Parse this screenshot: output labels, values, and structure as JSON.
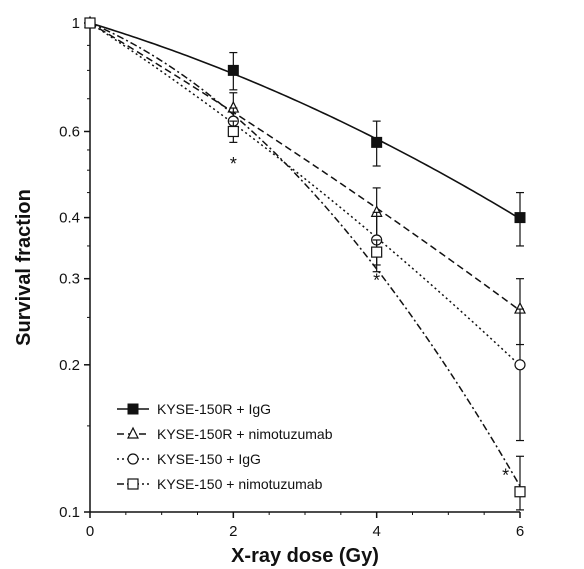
{
  "chart_data": {
    "type": "line",
    "title": "",
    "xlabel": "X-ray dose (Gy)",
    "ylabel": "Survival fraction",
    "scale_y": "log",
    "xlim": [
      0,
      6
    ],
    "ylim": [
      0.1,
      1
    ],
    "x_ticks": [
      0,
      2,
      4,
      6
    ],
    "x_tick_labels": [
      "0",
      "2",
      "4",
      "6"
    ],
    "y_ticks": [
      1,
      0.6,
      0.4,
      0.3,
      0.2,
      0.1
    ],
    "y_tick_labels": [
      "1",
      "0.6",
      "0.4",
      "0.3",
      "0.2",
      "0.1"
    ],
    "grid": false,
    "legend_position": "bottom-left",
    "series": [
      {
        "name": "KYSE-150R + IgG",
        "marker": "filled-square",
        "line": "solid",
        "color": "#111111",
        "x": [
          0,
          2,
          4,
          6
        ],
        "y": [
          1.0,
          0.8,
          0.57,
          0.4
        ],
        "err": [
          0,
          0.07,
          0.06,
          0.05
        ]
      },
      {
        "name": "KYSE-150R + nimotuzumab",
        "marker": "open-triangle",
        "line": "dashed",
        "color": "#111111",
        "x": [
          0,
          2,
          4,
          6
        ],
        "y": [
          1.0,
          0.67,
          0.41,
          0.26
        ],
        "err": [
          0,
          0.05,
          0.05,
          0.04
        ]
      },
      {
        "name": "KYSE-150 + IgG",
        "marker": "open-circle",
        "line": "dotted",
        "color": "#111111",
        "x": [
          0,
          2,
          4,
          6
        ],
        "y": [
          1.0,
          0.63,
          0.36,
          0.2
        ],
        "err": [
          0,
          0.04,
          0.05,
          0.06
        ]
      },
      {
        "name": "KYSE-150 + nimotuzumab",
        "marker": "open-square",
        "line": "dash-dot",
        "color": "#111111",
        "x": [
          0,
          2,
          4,
          6
        ],
        "y": [
          1.0,
          0.6,
          0.34,
          0.11
        ],
        "err": [
          0,
          0.03,
          0.02,
          0.02
        ]
      }
    ],
    "annotations": [
      {
        "text": "*",
        "x": 2,
        "y": 0.52
      },
      {
        "text": "*",
        "x": 4,
        "y": 0.3
      },
      {
        "text": "*",
        "x": 5.8,
        "y": 0.12
      }
    ]
  }
}
